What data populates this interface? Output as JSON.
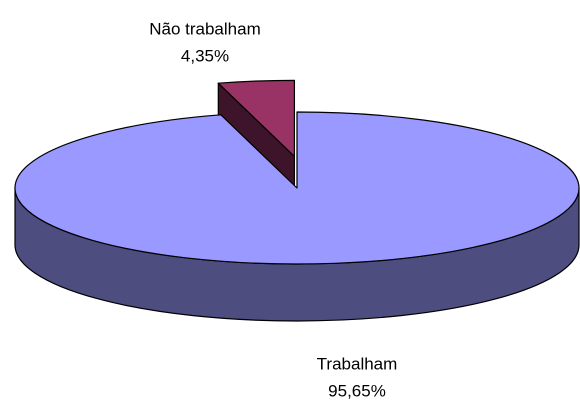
{
  "chart_data": {
    "type": "pie",
    "categories": [
      "Trabalham",
      "Não trabalham"
    ],
    "values": [
      95.65,
      4.35
    ],
    "value_labels": [
      "95,65%",
      "4,35%"
    ],
    "colors": [
      "#9999ff",
      "#993366"
    ],
    "exploded": [
      false,
      true
    ],
    "three_d": true
  }
}
